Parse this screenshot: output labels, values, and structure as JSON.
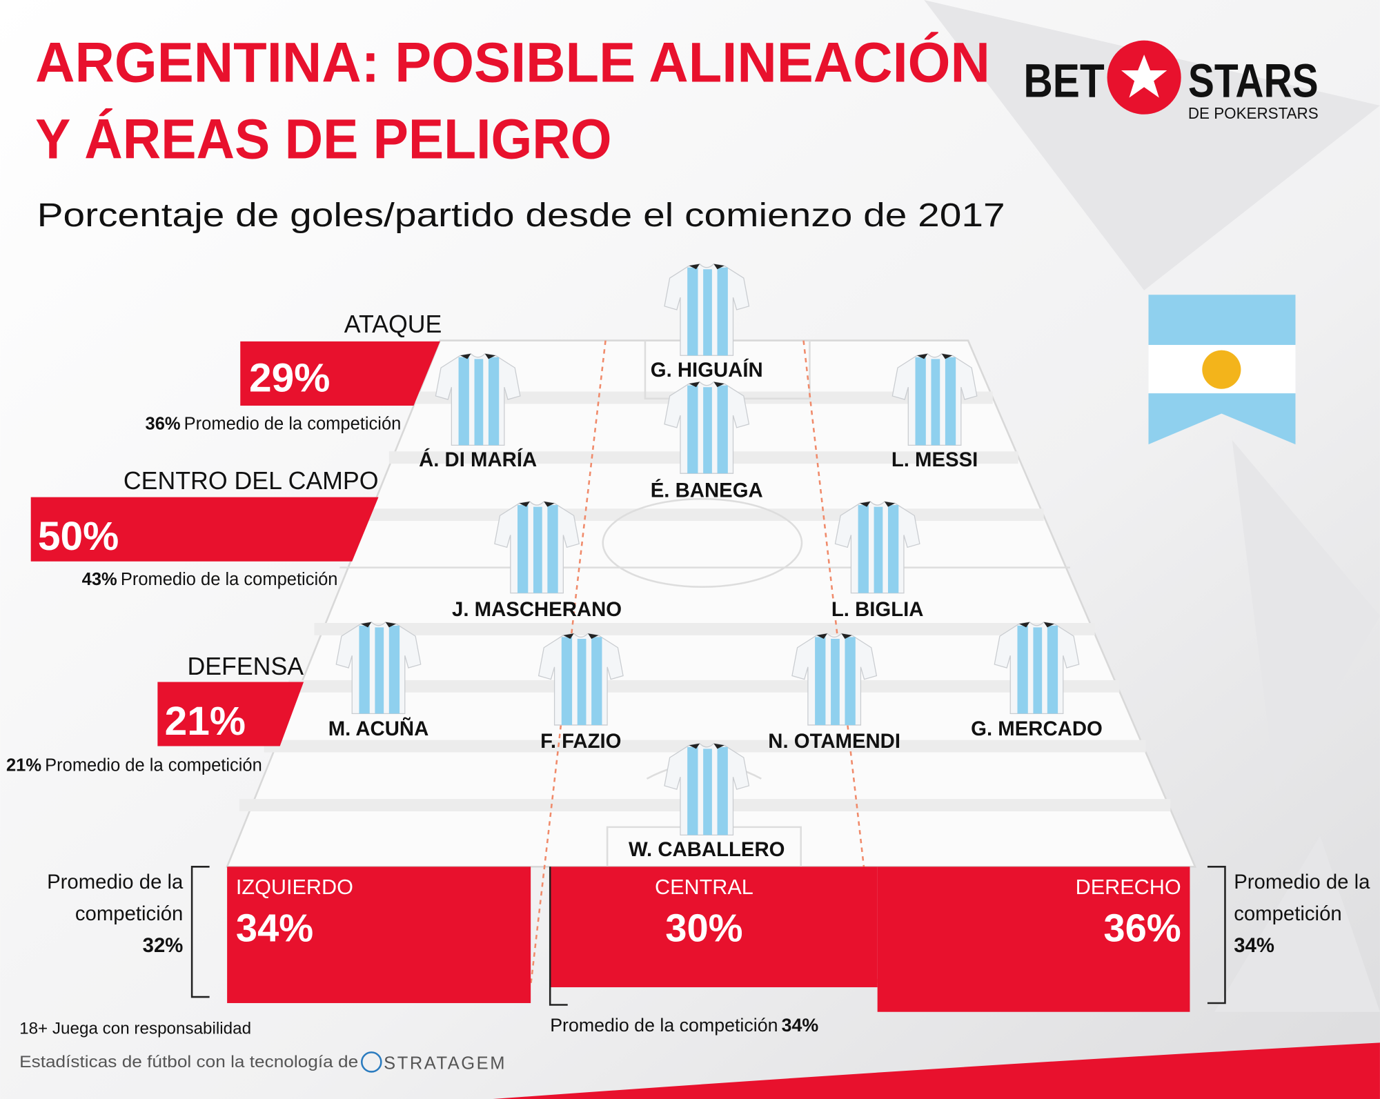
{
  "header": {
    "title_line1": "ARGENTINA: POSIBLE ALINEACIÓN",
    "title_line2": "Y ÁREAS DE PELIGRO",
    "subtitle": "Porcentaje de goles/partido desde el comienzo de 2017"
  },
  "logo": {
    "left": "BET",
    "right": "STARS",
    "sub": "DE POKERSTARS"
  },
  "zones": [
    {
      "label": "ATAQUE",
      "value": "29%",
      "average_value": "36%",
      "average_text": "Promedio de la competición"
    },
    {
      "label": "CENTRO DEL CAMPO",
      "value": "50%",
      "average_value": "43%",
      "average_text": "Promedio de la competición"
    },
    {
      "label": "DEFENSA",
      "value": "21%",
      "average_value": "21%",
      "average_text": "Promedio de la competición"
    }
  ],
  "channels": [
    {
      "label": "IZQUIERDO",
      "value": "34%",
      "average_line1": "Promedio de la",
      "average_line2": "competición",
      "average_value": "32%"
    },
    {
      "label": "CENTRAL",
      "value": "30%",
      "average_text": "Promedio de la competición",
      "average_value": "34%"
    },
    {
      "label": "DERECHO",
      "value": "36%",
      "average_line1": "Promedio de la",
      "average_line2": "competición",
      "average_value": "34%"
    }
  ],
  "players": [
    {
      "name": "G. HIGUAÍN"
    },
    {
      "name": "Á. DI MARÍA"
    },
    {
      "name": "É. BANEGA"
    },
    {
      "name": "L. MESSI"
    },
    {
      "name": "J. MASCHERANO"
    },
    {
      "name": "L. BIGLIA"
    },
    {
      "name": "M. ACUÑA"
    },
    {
      "name": "F. FAZIO"
    },
    {
      "name": "N. OTAMENDI"
    },
    {
      "name": "G. MERCADO"
    },
    {
      "name": "W. CABALLERO"
    }
  ],
  "footer": {
    "responsible": "18+ Juega con responsabilidad",
    "tech": "Estadísticas de fútbol con la tecnología de",
    "brand": "STRATAGEM"
  }
}
